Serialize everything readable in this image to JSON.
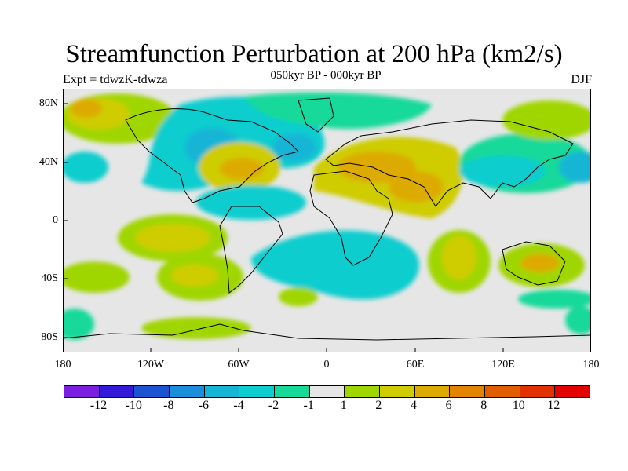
{
  "title": "Streamfunction Perturbation at 200 hPa (km2/s)",
  "subtitle_left": "Expt = tdwzK-tdwza",
  "subtitle_center": "050kyr BP - 000kyr BP",
  "subtitle_right": "DJF",
  "y_ticks": [
    "80N",
    "40N",
    "0",
    "40S",
    "80S"
  ],
  "x_ticks": [
    "180",
    "120W",
    "60W",
    "0",
    "60E",
    "120E",
    "180"
  ],
  "colorbar": {
    "labels": [
      "-12",
      "-10",
      "-8",
      "-6",
      "-4",
      "-2",
      "-1",
      "1",
      "2",
      "4",
      "6",
      "8",
      "10",
      "12"
    ],
    "colors": [
      "#7a1fe0",
      "#3419d8",
      "#1c53d0",
      "#1a8edb",
      "#15b5d5",
      "#0ecdcf",
      "#16d99a",
      "#e6e6e6",
      "#a0d600",
      "#cfcc00",
      "#ddab00",
      "#e28400",
      "#e15e00",
      "#e23000",
      "#e30000"
    ]
  },
  "colors": {
    "ocean_bg": "#e6e6e6",
    "pos1": "#a0d600",
    "pos2": "#cfcc00",
    "pos3": "#ddab00",
    "pos4": "#e28400",
    "neg1": "#16d99a",
    "neg2": "#0ecdcf",
    "neg3": "#15b5d5"
  }
}
